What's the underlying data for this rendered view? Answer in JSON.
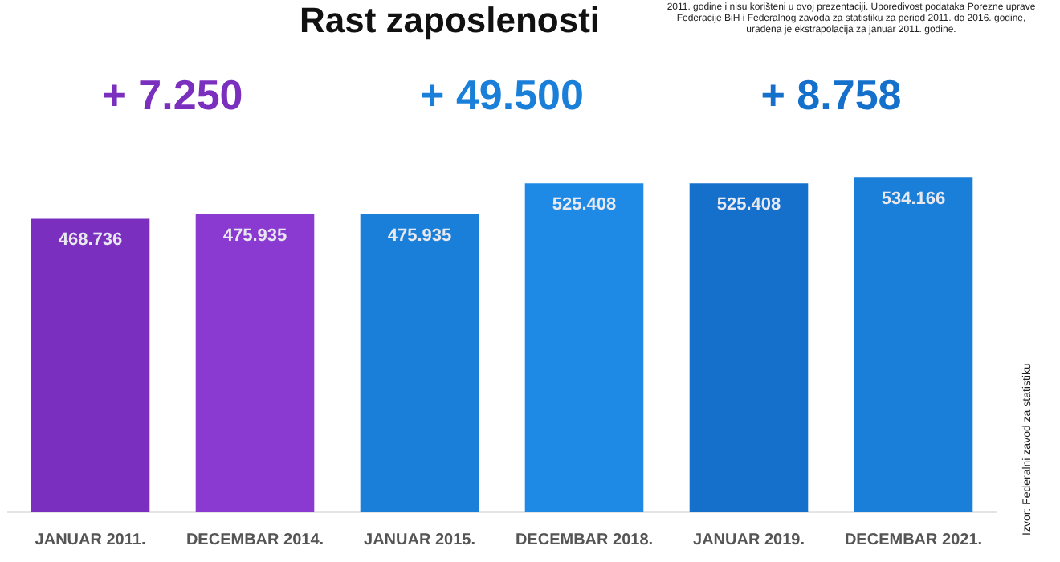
{
  "chart_data": {
    "type": "bar",
    "title": "Rast zaposlenosti",
    "categories": [
      "JANUAR 2011.",
      "DECEMBAR 2014.",
      "JANUAR 2015.",
      "DECEMBAR 2018.",
      "JANUAR 2019.",
      "DECEMBAR 2021."
    ],
    "values": [
      468736,
      475935,
      475935,
      525408,
      525408,
      534166
    ],
    "colors": [
      "#7a2fbf",
      "#8a3ad0",
      "#1a7fd8",
      "#1f8ae6",
      "#1570cc",
      "#1a7fd8"
    ],
    "value_labels": [
      "468.736",
      "475.935",
      "475.935",
      "525.408",
      "525.408",
      "534.166"
    ],
    "grid": false,
    "legend": false,
    "annotations": [
      "+ 7.250",
      "+ 49.500",
      "+ 8.758",
      "2011. godine i nisu korišteni u ovoj prezentaciji. Uporedivost podataka Porezne uprave Federacije BiH i Federalnog zavoda za statistiku za period 2011. do 2016. godine, urađena je ekstrapolacija za januar 2011. godine.",
      "Izvor: Federalni zavod za statistiku"
    ]
  }
}
